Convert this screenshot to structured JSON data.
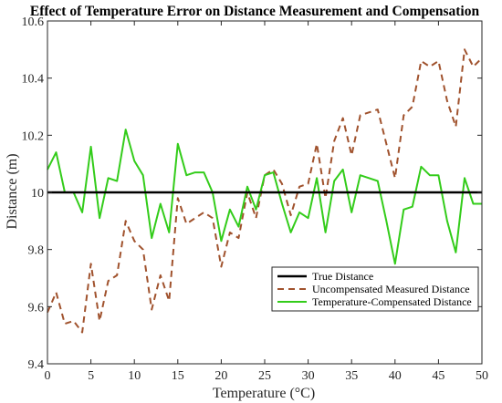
{
  "chart_data": {
    "type": "line",
    "title": "Effect of Temperature Error on Distance Measurement and Compensation",
    "xlabel": "Temperature (°C)",
    "ylabel": "Distance (m)",
    "xlim": [
      0,
      50
    ],
    "ylim": [
      9.4,
      10.6
    ],
    "xticks": [
      0,
      5,
      10,
      15,
      20,
      25,
      30,
      35,
      40,
      45,
      50
    ],
    "yticks": [
      9.4,
      9.6,
      9.8,
      10,
      10.2,
      10.4,
      10.6
    ],
    "grid": false,
    "legend_position": "bottom-right",
    "colors": {
      "true": "#000000",
      "uncompensated": "#a0522d",
      "compensated": "#33cc1a",
      "axes": "#262626"
    },
    "series": [
      {
        "name": "True Distance",
        "style": "solid",
        "color": "#000000",
        "x": [
          0,
          50
        ],
        "y": [
          10,
          10
        ]
      },
      {
        "name": "Uncompensated Measured Distance",
        "style": "dashed",
        "color": "#a0522d",
        "x": [
          0,
          1,
          2,
          3,
          4,
          5,
          6,
          7,
          8,
          9,
          10,
          11,
          12,
          13,
          14,
          15,
          16,
          17,
          18,
          19,
          20,
          21,
          22,
          23,
          24,
          25,
          26,
          27,
          28,
          29,
          30,
          31,
          32,
          33,
          34,
          35,
          36,
          37,
          38,
          39,
          40,
          41,
          42,
          43,
          44,
          45,
          46,
          47,
          48,
          49,
          50
        ],
        "y": [
          9.58,
          9.65,
          9.54,
          9.55,
          9.51,
          9.75,
          9.55,
          9.69,
          9.71,
          9.9,
          9.83,
          9.8,
          9.59,
          9.71,
          9.62,
          9.98,
          9.89,
          9.91,
          9.93,
          9.91,
          9.74,
          9.86,
          9.84,
          10.0,
          9.91,
          10.06,
          10.08,
          10.03,
          9.92,
          10.02,
          10.03,
          10.17,
          9.98,
          10.18,
          10.26,
          10.13,
          10.27,
          10.28,
          10.29,
          10.17,
          10.05,
          10.27,
          10.3,
          10.46,
          10.44,
          10.46,
          10.32,
          10.23,
          10.5,
          10.44,
          10.47
        ]
      },
      {
        "name": "Temperature-Compensated Distance",
        "style": "solid",
        "color": "#33cc1a",
        "x": [
          0,
          1,
          2,
          3,
          4,
          5,
          6,
          7,
          8,
          9,
          10,
          11,
          12,
          13,
          14,
          15,
          16,
          17,
          18,
          19,
          20,
          21,
          22,
          23,
          24,
          25,
          26,
          27,
          28,
          29,
          30,
          31,
          32,
          33,
          34,
          35,
          36,
          37,
          38,
          39,
          40,
          41,
          42,
          43,
          44,
          45,
          46,
          47,
          48,
          49,
          50
        ],
        "y": [
          10.08,
          10.14,
          10.0,
          10.0,
          9.93,
          10.16,
          9.91,
          10.05,
          10.04,
          10.22,
          10.11,
          10.06,
          9.84,
          9.96,
          9.86,
          10.17,
          10.06,
          10.07,
          10.07,
          10.0,
          9.83,
          9.94,
          9.88,
          10.02,
          9.94,
          10.06,
          10.07,
          9.96,
          9.86,
          9.93,
          9.91,
          10.05,
          9.86,
          10.04,
          10.08,
          9.93,
          10.06,
          10.05,
          10.04,
          9.9,
          9.75,
          9.94,
          9.95,
          10.09,
          10.06,
          10.06,
          9.9,
          9.79,
          10.05,
          9.96,
          9.96
        ]
      }
    ]
  }
}
